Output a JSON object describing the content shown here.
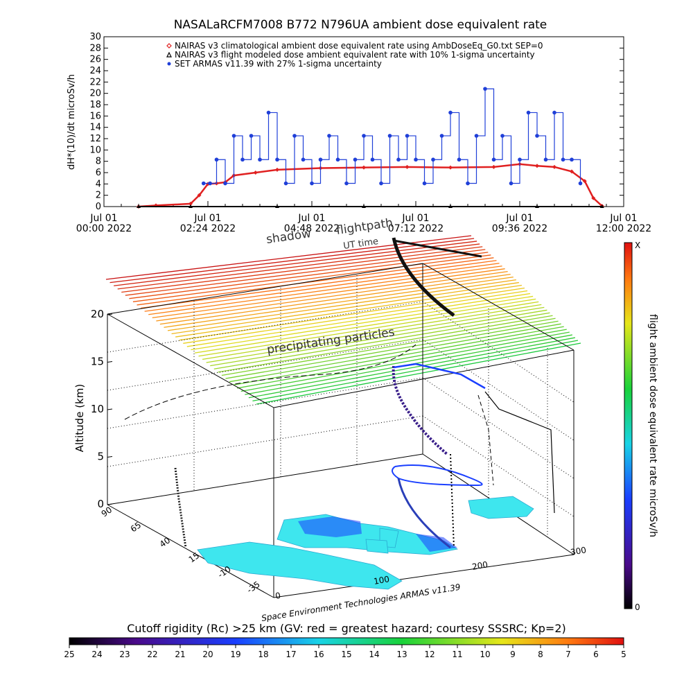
{
  "title": "NASALaRCFM7008   B772 N796UA ambient dose equivalent rate",
  "chart_data": [
    {
      "type": "scatter",
      "ylabel": "dH*(10)/dt microSv/h",
      "ylim": [
        0,
        30
      ],
      "y_ticks": [
        "0",
        "2",
        "4",
        "6",
        "8",
        "10",
        "12",
        "14",
        "16",
        "18",
        "20",
        "22",
        "24",
        "26",
        "28",
        "30"
      ],
      "xlim": [
        0,
        12
      ],
      "x_ticks": [
        {
          "x": 0.0,
          "line1": "Jul 01",
          "line2": "00:00 2022"
        },
        {
          "x": 2.4,
          "line1": "Jul 01",
          "line2": "02:24 2022"
        },
        {
          "x": 4.8,
          "line1": "Jul 01",
          "line2": "04:48 2022"
        },
        {
          "x": 7.2,
          "line1": "Jul 01",
          "line2": "07:12 2022"
        },
        {
          "x": 9.6,
          "line1": "Jul 01",
          "line2": "09:36 2022"
        },
        {
          "x": 12.0,
          "line1": "Jul 01",
          "line2": "12:00 2022"
        }
      ],
      "legend": [
        {
          "label": "NAIRAS v3 climatological ambient dose equivalent rate using AmbDoseEq_G0.txt SEP=0",
          "color": "#e02020",
          "marker": "diamond"
        },
        {
          "label": "NAIRAS v3 flight modeled dose ambient equivalent rate with 10% 1-sigma uncertainty",
          "color": "#000000",
          "marker": "triangle"
        },
        {
          "label": "SET ARMAS v11.39 with 27% 1-sigma uncertainty",
          "color": "#1f3fd8",
          "marker": "dot"
        }
      ],
      "series": [
        {
          "name": "NAIRAS v3 climatological ambient dose equivalent rate using AmbDoseEq_G0.txt SEP=0",
          "x": [
            0.8,
            1.2,
            2.0,
            2.2,
            2.4,
            2.6,
            2.8,
            3.0,
            3.5,
            4.0,
            5.0,
            6.0,
            7.0,
            8.0,
            9.0,
            9.6,
            10.0,
            10.4,
            10.8,
            11.1,
            11.3,
            11.5
          ],
          "y": [
            0,
            0.2,
            0.5,
            2.0,
            4.0,
            4.1,
            4.3,
            5.5,
            6.0,
            6.5,
            6.8,
            6.9,
            7.0,
            6.9,
            7.0,
            7.5,
            7.2,
            7.0,
            6.2,
            4.5,
            1.5,
            0.1
          ]
        },
        {
          "name": "NAIRAS v3 flight modeled dose ambient equivalent rate with 10% 1-sigma uncertainty",
          "x": [
            0.8,
            2.0,
            4.0,
            6.0,
            8.0,
            10.0,
            11.5
          ],
          "y": [
            0,
            0,
            0,
            0,
            0,
            0,
            0
          ]
        },
        {
          "name": "SET ARMAS v11.39 with 27% 1-sigma uncertainty",
          "x": [
            2.3,
            2.45,
            2.6,
            2.8,
            3.0,
            3.2,
            3.4,
            3.6,
            3.8,
            4.0,
            4.2,
            4.4,
            4.6,
            4.8,
            5.0,
            5.2,
            5.4,
            5.6,
            5.8,
            6.0,
            6.2,
            6.4,
            6.6,
            6.8,
            7.0,
            7.2,
            7.4,
            7.6,
            7.8,
            8.0,
            8.2,
            8.4,
            8.6,
            8.8,
            9.0,
            9.2,
            9.4,
            9.6,
            9.8,
            10.0,
            10.2,
            10.4,
            10.6,
            10.8,
            11.0
          ],
          "y": [
            4.1,
            4.1,
            8.3,
            4.1,
            12.5,
            8.3,
            12.5,
            8.3,
            16.6,
            8.3,
            4.1,
            12.5,
            8.3,
            4.1,
            8.3,
            12.5,
            8.3,
            4.1,
            8.3,
            12.5,
            8.3,
            4.1,
            12.5,
            8.3,
            12.5,
            8.3,
            4.1,
            8.3,
            12.5,
            16.6,
            8.3,
            4.1,
            12.5,
            20.8,
            8.3,
            12.5,
            4.1,
            8.3,
            16.6,
            12.5,
            8.3,
            16.6,
            8.3,
            8.3,
            4.1
          ]
        }
      ]
    },
    {
      "type": "3d-trajectory",
      "zlabel": "Altitude (km)",
      "z_ticks": [
        "0",
        "5",
        "10",
        "15",
        "20"
      ],
      "lon_ticks": [
        "0",
        "100",
        "200",
        "300"
      ],
      "lat_ticks": [
        "-35",
        "-10",
        "15",
        "40",
        "65",
        "90"
      ],
      "colorbar_label": "flight ambient dose equivalent rate microSv/h",
      "colorbar_top": "X",
      "colorbar_bottom": "0",
      "annotations": [
        "shadow",
        "flightpath",
        "UT time",
        "precipitating particles"
      ],
      "credit": "Space Environment Technologies ARMAS v11.39"
    },
    {
      "type": "colorbar",
      "label": "Cutoff rigidity (Rc) >25 km (GV: red = greatest hazard; courtesy SSSRC; Kp=2)",
      "ticks": [
        "25",
        "24",
        "23",
        "22",
        "21",
        "20",
        "19",
        "18",
        "17",
        "16",
        "15",
        "14",
        "13",
        "12",
        "11",
        "10",
        "9",
        "8",
        "7",
        "6",
        "5"
      ]
    }
  ]
}
